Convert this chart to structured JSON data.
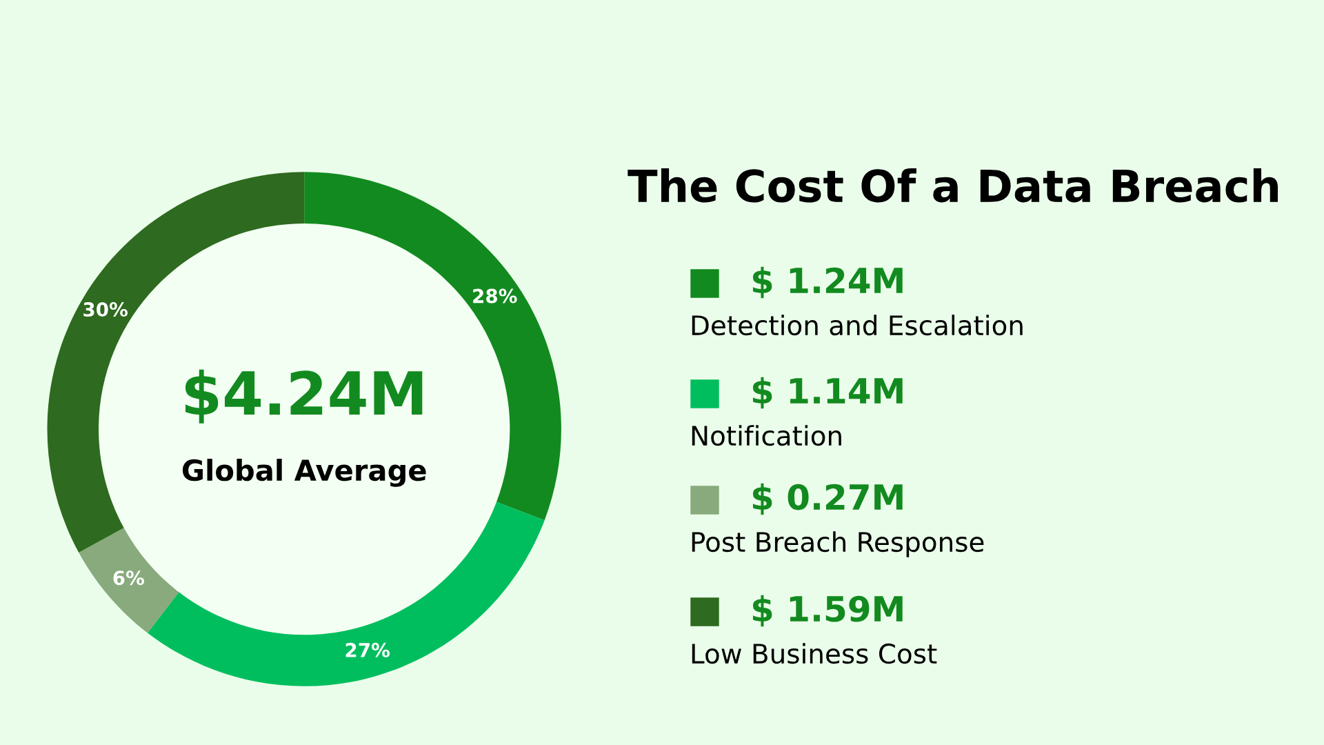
{
  "chart_data": {
    "type": "donut",
    "title": "The Cost Of a Data Breach",
    "categories": [
      "Detection and Escalation",
      "Notification",
      "Post Breach Response",
      "Low Business Cost"
    ],
    "values": [
      28,
      27,
      6,
      30
    ],
    "colors": [
      "#128a1f",
      "#00be5e",
      "#88aa7c",
      "#2e6a1f"
    ],
    "value_labels": [
      "28%",
      "27%",
      "6%",
      "30%"
    ],
    "legend": "right",
    "annotations": [
      "$4.24M",
      "Global Average",
      "$ 1.24M",
      "$ 1.14M",
      "$ 0.27M",
      "$ 1.59M"
    ]
  }
}
